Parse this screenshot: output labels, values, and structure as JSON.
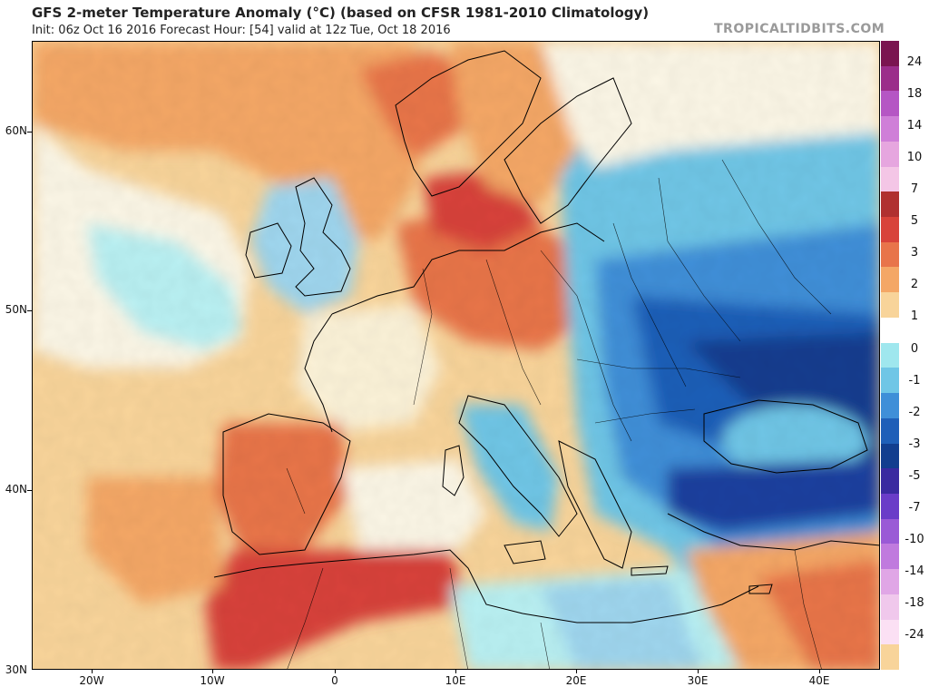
{
  "header": {
    "title": "GFS 2-meter Temperature Anomaly (°C) (based on CFSR 1981-2010 Climatology)",
    "subtitle": "Init: 06z Oct 16 2016   Forecast Hour: [54]   valid at 12z Tue, Oct 18 2016",
    "watermark": "TROPICALTIDBITS.COM"
  },
  "map": {
    "lat_labels": [
      "60N",
      "50N",
      "40N",
      "30N"
    ],
    "lon_labels": [
      "20W",
      "10W",
      "0",
      "10E",
      "20E",
      "30E",
      "40E"
    ]
  },
  "colorbar": {
    "labels": [
      "24",
      "18",
      "14",
      "10",
      "7",
      "5",
      "3",
      "2",
      "1",
      "0",
      "-1",
      "-2",
      "-3",
      "-5",
      "-7",
      "-10",
      "-14",
      "-18",
      "-24"
    ],
    "colors": [
      "#7a1450",
      "#9b2d8a",
      "#b556c4",
      "#cf7fd8",
      "#e6a6df",
      "#f4c6e6",
      "#b03030",
      "#d8433a",
      "#e8744a",
      "#f4a766",
      "#f8d49a",
      "#ffffff",
      "#9fe7ee",
      "#6fc6e6",
      "#3f8fd8",
      "#1f5fb8",
      "#123e8f",
      "#3a2aa0",
      "#6a3cc8",
      "#9a5ad6",
      "#c07ade",
      "#e0a6e6",
      "#f0c8ec",
      "#fbe0f4",
      "#f8d49a"
    ]
  }
}
